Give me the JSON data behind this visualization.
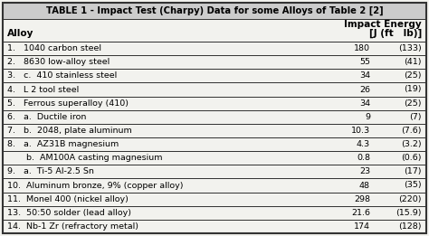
{
  "title": "TABLE 1 - Impact Test (Charpy) Data for some Alloys of Table 2 [2]",
  "col_header_left": "Alloy",
  "col_header_right_line1": "Impact Energy",
  "col_header_right_line2": "[J (ft   lb)]",
  "rows": [
    {
      "alloy": "1.   1040 carbon steel",
      "j": "180",
      "ftlb": "(133)"
    },
    {
      "alloy": "2.   8630 low-alloy steel",
      "j": "55",
      "ftlb": "(41)"
    },
    {
      "alloy": "3.   c.  410 stainless steel",
      "j": "34",
      "ftlb": "(25)"
    },
    {
      "alloy": "4.   L 2 tool steel",
      "j": "26",
      "ftlb": "(19)"
    },
    {
      "alloy": "5.   Ferrous superalloy (410)",
      "j": "34",
      "ftlb": "(25)"
    },
    {
      "alloy": "6.   a.  Ductile iron",
      "j": "9",
      "ftlb": "(7)"
    },
    {
      "alloy": "7.   b.  2048, plate aluminum",
      "j": "10.3",
      "ftlb": "(7.6)"
    },
    {
      "alloy": "8.   a.  AZ31B magnesium",
      "j": "4.3",
      "ftlb": "(3.2)"
    },
    {
      "alloy": "       b.  AM100A casting magnesium",
      "j": "0.8",
      "ftlb": "(0.6)"
    },
    {
      "alloy": "9.   a.  Ti-5 Al-2.5 Sn",
      "j": "23",
      "ftlb": "(17)"
    },
    {
      "alloy": "10.  Aluminum bronze, 9% (copper alloy)",
      "j": "48",
      "ftlb": "(35)"
    },
    {
      "alloy": "11.  Monel 400 (nickel alloy)",
      "j": "298",
      "ftlb": "(220)"
    },
    {
      "alloy": "13.  50:50 solder (lead alloy)",
      "j": "21.6",
      "ftlb": "(15.9)"
    },
    {
      "alloy": "14.  Nb-1 Zr (refractory metal)",
      "j": "174",
      "ftlb": "(128)"
    }
  ],
  "bg_color": "#f2f2ee",
  "header_bg": "#cccccc",
  "border_color": "#333333",
  "text_color": "#000000",
  "font_size": 6.8,
  "title_font_size": 7.2
}
